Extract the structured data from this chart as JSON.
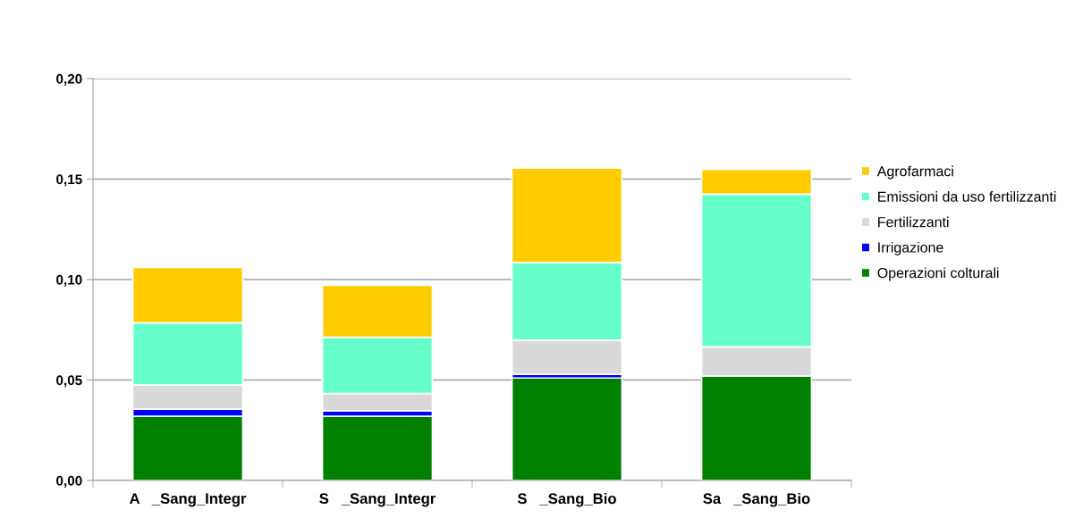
{
  "chart_data": {
    "type": "bar",
    "stacked": true,
    "categories": [
      "A   _Sang_Integr",
      "S   _Sang_Integr",
      "S   _Sang_Bio",
      "Sa   _Sang_Bio"
    ],
    "series": [
      {
        "name": "Operazioni colturali",
        "color": "#008000",
        "values": [
          0.032,
          0.032,
          0.051,
          0.052
        ]
      },
      {
        "name": "Irrigazione",
        "color": "#0000ff",
        "values": [
          0.0035,
          0.0027,
          0.0018,
          0
        ]
      },
      {
        "name": "Fertilizzanti",
        "color": "#d9d9d9",
        "values": [
          0.012,
          0.0086,
          0.017,
          0.0145
        ]
      },
      {
        "name": "Emissioni da uso fertilizzanti",
        "color": "#66ffcc",
        "values": [
          0.031,
          0.028,
          0.0387,
          0.076
        ]
      },
      {
        "name": "Agrofarmaci",
        "color": "#ffcc00",
        "values": [
          0.0275,
          0.0258,
          0.047,
          0.0123
        ]
      }
    ],
    "ylim": [
      0,
      0.2
    ],
    "yticks": [
      {
        "value": 0,
        "label": "0,00"
      },
      {
        "value": 0.05,
        "label": "0,05"
      },
      {
        "value": 0.1,
        "label": "0,10"
      },
      {
        "value": 0.15,
        "label": "0,15"
      },
      {
        "value": 0.2,
        "label": "0,20"
      }
    ],
    "grid": "y",
    "legend": "right"
  }
}
